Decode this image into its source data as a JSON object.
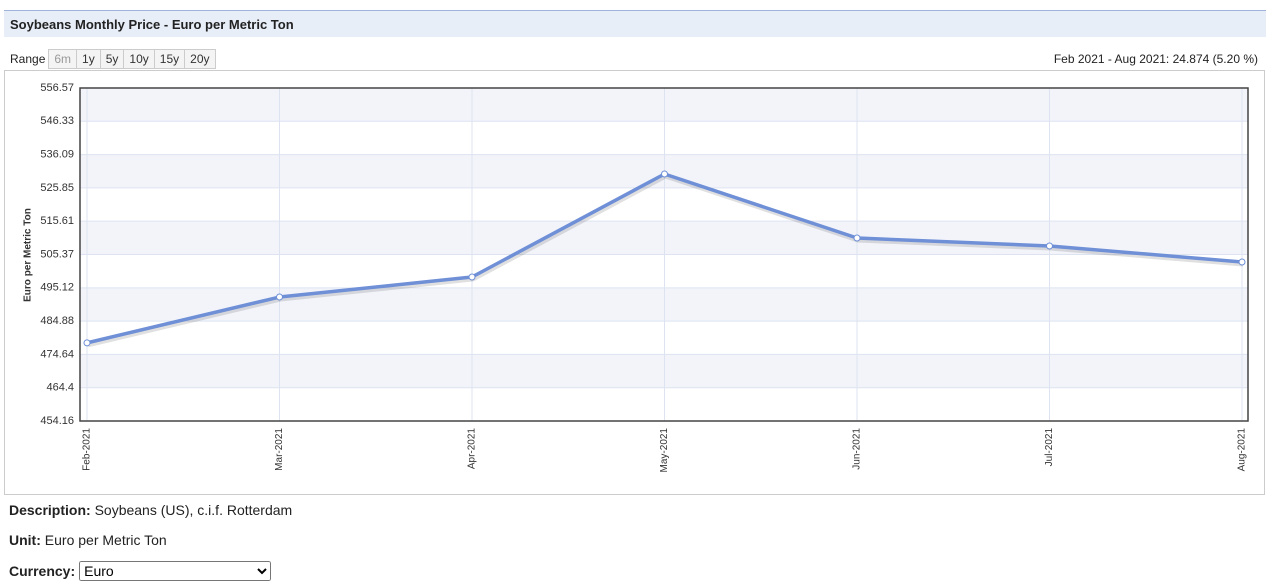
{
  "header": {
    "title": "Soybeans Monthly Price - Euro per Metric Ton"
  },
  "range": {
    "label": "Range",
    "buttons": [
      "6m",
      "1y",
      "5y",
      "10y",
      "15y",
      "20y"
    ],
    "summary": "Feb 2021 - Aug 2021: 24.874 (5.20 %)"
  },
  "chart_data": {
    "type": "line",
    "y_label": "Euro per Metric Ton",
    "categories": [
      "Feb-2021",
      "Mar-2021",
      "Apr-2021",
      "May-2021",
      "Jun-2021",
      "Jul-2021",
      "Aug-2021"
    ],
    "values": [
      478.19,
      492.29,
      498.45,
      530.12,
      510.44,
      507.98,
      503.06
    ],
    "color": "#6f8fd6",
    "ylim": [
      454.16,
      556.57
    ],
    "yticks": [
      454.16,
      464.4,
      474.64,
      484.88,
      495.12,
      505.37,
      515.61,
      525.85,
      536.09,
      546.33,
      556.57
    ],
    "grid": true
  },
  "details": {
    "description_label": "Description:",
    "description": "Soybeans (US), c.i.f. Rotterdam",
    "unit_label": "Unit:",
    "unit": "Euro per Metric Ton",
    "currency_label": "Currency:",
    "currency": "Euro"
  }
}
